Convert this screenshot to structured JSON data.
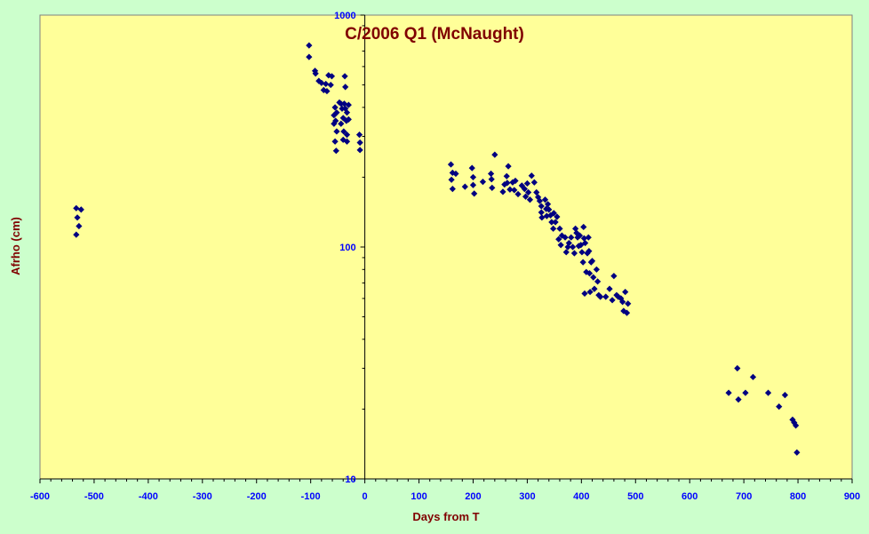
{
  "chart_data": {
    "type": "scatter",
    "title": "C/2006 Q1 (McNaught)",
    "xlabel": "Days from T",
    "ylabel": "Afrho (cm)",
    "xlim": [
      -600,
      900
    ],
    "ylim": [
      10,
      1000
    ],
    "yscale": "log",
    "x_ticks": [
      "-600",
      "-500",
      "-400",
      "-300",
      "-200",
      "-100",
      "0",
      "100",
      "200",
      "300",
      "400",
      "500",
      "600",
      "700",
      "800",
      "900"
    ],
    "y_ticks": [
      "10",
      "100",
      "1000"
    ],
    "grid": false,
    "legend": "none",
    "colors": {
      "plot_bg": "#ffff99",
      "page_bg": "#ccffcc",
      "marker": "#000080",
      "title": "#800000",
      "ticks": "#0000ff"
    },
    "series": [
      {
        "marker": "diamond",
        "points": [
          [
            -533,
            147
          ],
          [
            -524,
            145
          ],
          [
            -531,
            134
          ],
          [
            -528,
            123
          ],
          [
            -533,
            113
          ],
          [
            -103,
            740
          ],
          [
            -103,
            660
          ],
          [
            -92,
            575
          ],
          [
            -91,
            560
          ],
          [
            -85,
            520
          ],
          [
            -80,
            510
          ],
          [
            -76,
            475
          ],
          [
            -72,
            505
          ],
          [
            -70,
            470
          ],
          [
            -67,
            550
          ],
          [
            -61,
            545
          ],
          [
            -63,
            500
          ],
          [
            -55,
            400
          ],
          [
            -52,
            380
          ],
          [
            -57,
            370
          ],
          [
            -54,
            350
          ],
          [
            -57,
            340
          ],
          [
            -52,
            315
          ],
          [
            -55,
            285
          ],
          [
            -53,
            260
          ],
          [
            -47,
            420
          ],
          [
            -44,
            415
          ],
          [
            -42,
            395
          ],
          [
            -38,
            415
          ],
          [
            -36,
            395
          ],
          [
            -33,
            380
          ],
          [
            -30,
            410
          ],
          [
            -40,
            360
          ],
          [
            -34,
            350
          ],
          [
            -30,
            355
          ],
          [
            -44,
            340
          ],
          [
            -39,
            315
          ],
          [
            -33,
            305
          ],
          [
            -40,
            290
          ],
          [
            -33,
            285
          ],
          [
            -37,
            545
          ],
          [
            -36,
            490
          ],
          [
            -10,
            305
          ],
          [
            -9,
            282
          ],
          [
            -9,
            262
          ],
          [
            159,
            227
          ],
          [
            162,
            209
          ],
          [
            168,
            207
          ],
          [
            160,
            195
          ],
          [
            162,
            178
          ],
          [
            185,
            182
          ],
          [
            198,
            219
          ],
          [
            200,
            200
          ],
          [
            200,
            185
          ],
          [
            202,
            170
          ],
          [
            218,
            191
          ],
          [
            233,
            207
          ],
          [
            234,
            196
          ],
          [
            235,
            180
          ],
          [
            240,
            250
          ],
          [
            255,
            173
          ],
          [
            258,
            186
          ],
          [
            262,
            202
          ],
          [
            265,
            223
          ],
          [
            263,
            189
          ],
          [
            268,
            177
          ],
          [
            273,
            190
          ],
          [
            276,
            176
          ],
          [
            278,
            193
          ],
          [
            283,
            169
          ],
          [
            290,
            184
          ],
          [
            295,
            178
          ],
          [
            297,
            165
          ],
          [
            300,
            188
          ],
          [
            302,
            172
          ],
          [
            305,
            160
          ],
          [
            308,
            203
          ],
          [
            313,
            190
          ],
          [
            317,
            172
          ],
          [
            320,
            164
          ],
          [
            323,
            158
          ],
          [
            326,
            150
          ],
          [
            326,
            141
          ],
          [
            327,
            134
          ],
          [
            333,
            160
          ],
          [
            335,
            146
          ],
          [
            336,
            136
          ],
          [
            338,
            153
          ],
          [
            340,
            145
          ],
          [
            343,
            137
          ],
          [
            345,
            128
          ],
          [
            348,
            120
          ],
          [
            349,
            140
          ],
          [
            352,
            128
          ],
          [
            355,
            135
          ],
          [
            358,
            108
          ],
          [
            360,
            120
          ],
          [
            362,
            102
          ],
          [
            364,
            112
          ],
          [
            370,
            110
          ],
          [
            372,
            95
          ],
          [
            375,
            100
          ],
          [
            377,
            104
          ],
          [
            381,
            110
          ],
          [
            384,
            100
          ],
          [
            387,
            94
          ],
          [
            389,
            120
          ],
          [
            391,
            115
          ],
          [
            393,
            110
          ],
          [
            395,
            101
          ],
          [
            397,
            112
          ],
          [
            399,
            102
          ],
          [
            401,
            95
          ],
          [
            404,
            122
          ],
          [
            405,
            109
          ],
          [
            407,
            104
          ],
          [
            403,
            86
          ],
          [
            409,
            78
          ],
          [
            406,
            63
          ],
          [
            411,
            94
          ],
          [
            413,
            110
          ],
          [
            414,
            96
          ],
          [
            415,
            77
          ],
          [
            416,
            64
          ],
          [
            418,
            86
          ],
          [
            420,
            87
          ],
          [
            422,
            74
          ],
          [
            424,
            66
          ],
          [
            428,
            80
          ],
          [
            430,
            71
          ],
          [
            432,
            62
          ],
          [
            435,
            61
          ],
          [
            445,
            61
          ],
          [
            452,
            66
          ],
          [
            457,
            59
          ],
          [
            460,
            75
          ],
          [
            465,
            62
          ],
          [
            468,
            61
          ],
          [
            473,
            60
          ],
          [
            476,
            58
          ],
          [
            478,
            53
          ],
          [
            481,
            64
          ],
          [
            484,
            52
          ],
          [
            486,
            57
          ],
          [
            672,
            23.5
          ],
          [
            688,
            30
          ],
          [
            690,
            22
          ],
          [
            703,
            23.5
          ],
          [
            717,
            27.5
          ],
          [
            745,
            23.5
          ],
          [
            765,
            20.5
          ],
          [
            776,
            23
          ],
          [
            790,
            18
          ],
          [
            793,
            17.5
          ],
          [
            796,
            17
          ],
          [
            798,
            13
          ]
        ]
      }
    ]
  }
}
